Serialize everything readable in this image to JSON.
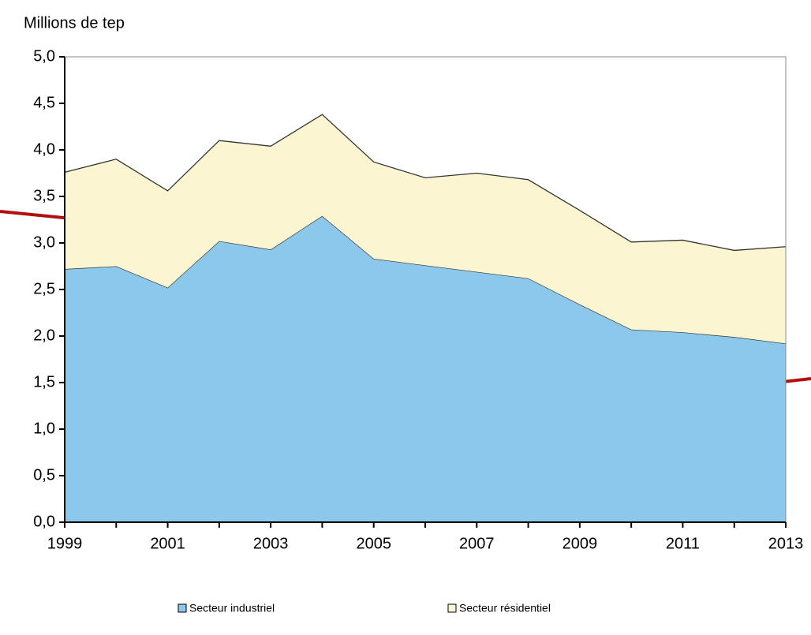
{
  "chart_data": {
    "type": "stacked-area",
    "ylabel": "Millions de tep",
    "x": [
      1999,
      2000,
      2001,
      2002,
      2003,
      2004,
      2005,
      2006,
      2007,
      2008,
      2009,
      2010,
      2011,
      2012,
      2013
    ],
    "xlim": [
      1999,
      2013
    ],
    "xticks": [
      1999,
      2001,
      2003,
      2005,
      2007,
      2009,
      2011,
      2013
    ],
    "ylim": [
      0,
      5
    ],
    "yticks": [
      {
        "value": 0,
        "label": "0,0"
      },
      {
        "value": 0.5,
        "label": "0,5"
      },
      {
        "value": 1,
        "label": "1,0"
      },
      {
        "value": 1.5,
        "label": "1,5"
      },
      {
        "value": 2,
        "label": "2,0"
      },
      {
        "value": 2.5,
        "label": "2,5"
      },
      {
        "value": 3,
        "label": "3,0"
      },
      {
        "value": 3.5,
        "label": "3,5"
      },
      {
        "value": 4,
        "label": "4,0"
      },
      {
        "value": 4.5,
        "label": "4,5"
      },
      {
        "value": 5,
        "label": "5,0"
      }
    ],
    "series": [
      {
        "name": "Secteur industriel",
        "color": "#8cc8ec",
        "values": [
          2.72,
          2.75,
          2.52,
          3.02,
          2.93,
          3.29,
          2.83,
          2.76,
          2.69,
          2.62,
          2.34,
          2.07,
          2.04,
          1.99,
          1.92
        ]
      },
      {
        "name": "Secteur résidentiel",
        "color": "#fbf6d1",
        "values": [
          1.04,
          1.15,
          1.04,
          1.08,
          1.11,
          1.09,
          1.04,
          0.94,
          1.06,
          1.06,
          1.01,
          0.94,
          0.99,
          0.93,
          1.04
        ]
      }
    ]
  }
}
